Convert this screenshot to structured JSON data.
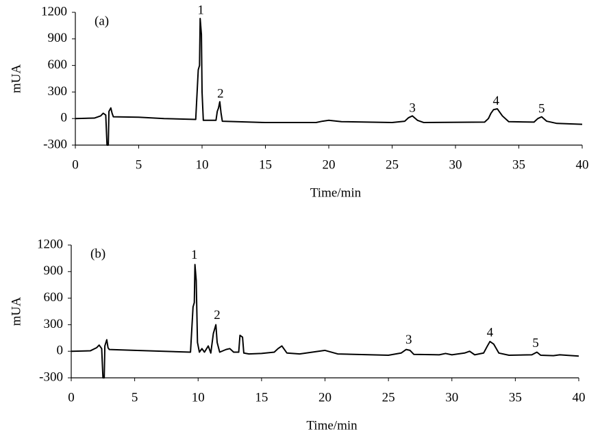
{
  "chart_data": [
    {
      "type": "line",
      "panel": "(a)",
      "xlabel": "Time/min",
      "ylabel": "mUA",
      "xlim": [
        0,
        40
      ],
      "xticks": [
        0,
        5,
        10,
        15,
        20,
        25,
        30,
        35,
        40
      ],
      "ylim": [
        -300,
        1200
      ],
      "yticks": [
        -300,
        0,
        300,
        600,
        900,
        1200
      ],
      "series": [
        {
          "name": "a",
          "color": "#000000",
          "x": [
            0,
            1.5,
            2.0,
            2.2,
            2.4,
            2.5,
            2.6,
            2.65,
            2.8,
            2.9,
            3.0,
            5,
            7,
            9.5,
            9.7,
            9.8,
            9.85,
            9.95,
            10.0,
            10.1,
            11.1,
            11.2,
            11.3,
            11.4,
            11.5,
            11.6,
            15,
            19,
            19.5,
            20,
            21,
            25,
            26,
            26.3,
            26.6,
            27,
            27.5,
            32.3,
            32.6,
            32.8,
            33.0,
            33.3,
            33.7,
            34.2,
            36.2,
            36.5,
            36.8,
            37.2,
            38,
            40
          ],
          "values": [
            0,
            5,
            30,
            60,
            40,
            -300,
            -300,
            80,
            120,
            60,
            20,
            15,
            0,
            -10,
            550,
            600,
            1130,
            950,
            300,
            -20,
            -20,
            80,
            120,
            190,
            60,
            -30,
            -45,
            -45,
            -30,
            -20,
            -35,
            -45,
            -30,
            10,
            30,
            -20,
            -45,
            -40,
            0,
            60,
            100,
            110,
            30,
            -35,
            -40,
            0,
            20,
            -30,
            -55,
            -65
          ]
        }
      ],
      "annotations": [
        {
          "text": "1",
          "x": 9.9,
          "y": 1215
        },
        {
          "text": "2",
          "x": 11.45,
          "y": 270
        },
        {
          "text": "3",
          "x": 26.6,
          "y": 110
        },
        {
          "text": "4",
          "x": 33.2,
          "y": 190
        },
        {
          "text": "5",
          "x": 36.8,
          "y": 100
        }
      ]
    },
    {
      "type": "line",
      "panel": "(b)",
      "xlabel": "Time/min",
      "ylabel": "mUA",
      "xlim": [
        0,
        40
      ],
      "xticks": [
        0,
        5,
        10,
        15,
        20,
        25,
        30,
        35,
        40
      ],
      "ylim": [
        -300,
        1200
      ],
      "yticks": [
        -300,
        0,
        300,
        600,
        900,
        1200
      ],
      "series": [
        {
          "name": "b",
          "color": "#000000",
          "x": [
            0,
            1.5,
            2.0,
            2.2,
            2.4,
            2.5,
            2.6,
            2.65,
            2.8,
            2.9,
            3.0,
            5,
            9.4,
            9.6,
            9.7,
            9.75,
            9.85,
            9.95,
            10.1,
            10.3,
            10.5,
            10.8,
            11.0,
            11.2,
            11.4,
            11.5,
            11.7,
            12.2,
            12.5,
            12.8,
            13.2,
            13.3,
            13.5,
            13.6,
            14,
            15,
            16,
            16.3,
            16.6,
            17,
            18,
            20,
            21,
            25,
            26,
            26.4,
            26.7,
            27,
            29,
            29.5,
            30,
            31,
            31.4,
            31.8,
            32.5,
            32.8,
            33.0,
            33.3,
            33.7,
            34.5,
            36.3,
            36.7,
            37,
            38,
            38.5,
            40
          ],
          "values": [
            0,
            5,
            40,
            70,
            30,
            -300,
            -300,
            60,
            130,
            40,
            20,
            10,
            -10,
            500,
            550,
            980,
            800,
            100,
            -10,
            30,
            -10,
            60,
            -20,
            200,
            300,
            100,
            -10,
            20,
            30,
            -10,
            -10,
            180,
            160,
            -20,
            -30,
            -25,
            -10,
            30,
            60,
            -20,
            -30,
            10,
            -30,
            -45,
            -20,
            20,
            10,
            -35,
            -40,
            -25,
            -40,
            -20,
            0,
            -40,
            -20,
            60,
            110,
            80,
            -20,
            -45,
            -40,
            -10,
            -45,
            -50,
            -40,
            -55
          ]
        }
      ],
      "annotations": [
        {
          "text": "1",
          "x": 9.7,
          "y": 1080
        },
        {
          "text": "2",
          "x": 11.5,
          "y": 400
        },
        {
          "text": "3",
          "x": 26.6,
          "y": 120
        },
        {
          "text": "4",
          "x": 33.0,
          "y": 200
        },
        {
          "text": "5",
          "x": 36.6,
          "y": 80
        }
      ]
    }
  ]
}
